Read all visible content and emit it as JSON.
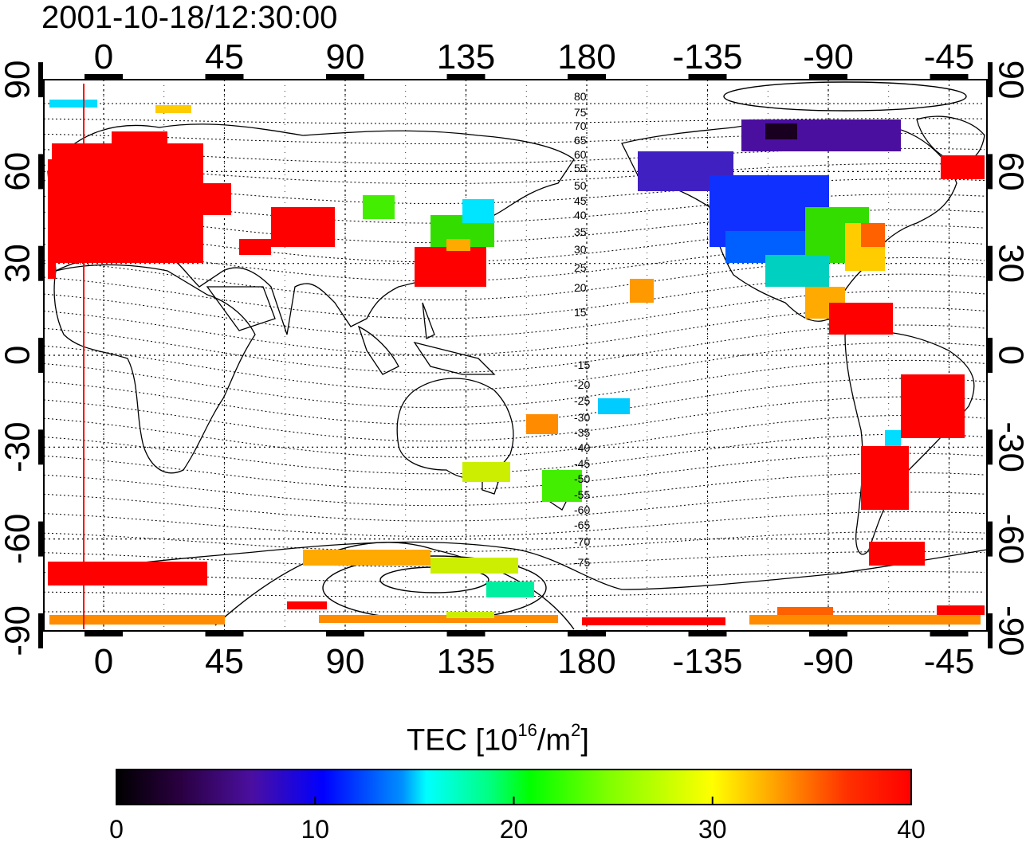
{
  "timestamp": "2001-10-18/12:30:00",
  "axes": {
    "top_ticks": [
      "0",
      "45",
      "90",
      "135",
      "180",
      "-135",
      "-90",
      "-45"
    ],
    "bottom_ticks": [
      "0",
      "45",
      "90",
      "135",
      "180",
      "-135",
      "-90",
      "-45"
    ],
    "left_ticks": [
      "90",
      "60",
      "30",
      "0",
      "-30",
      "-60",
      "-90"
    ],
    "right_ticks": [
      "90",
      "60",
      "30",
      "0",
      "-30",
      "-60",
      "-90"
    ]
  },
  "contour_labels": [
    "80",
    "75",
    "70",
    "65",
    "60",
    "55",
    "50",
    "45",
    "40",
    "35",
    "30",
    "25",
    "20",
    "15",
    "-15",
    "-20",
    "-25",
    "-30",
    "-35",
    "-40",
    "-45",
    "-50",
    "-55",
    "-60",
    "-65",
    "-70",
    "-75"
  ],
  "colorbar": {
    "title_prefix": "TEC  [10",
    "title_exp1": "16",
    "title_mid": "/m",
    "title_exp2": "2",
    "title_suffix": "]",
    "tick_labels": [
      "0",
      "10",
      "20",
      "30",
      "40"
    ],
    "min": 0,
    "max": 40
  },
  "colors": {
    "high": "#ff0000",
    "orange": "#ff8c00",
    "yellow": "#ffe600",
    "green": "#33dd00",
    "cyan": "#00e5ff",
    "blue": "#0033ff",
    "purple": "#4b0fa0",
    "dark": "#1a0020"
  }
}
